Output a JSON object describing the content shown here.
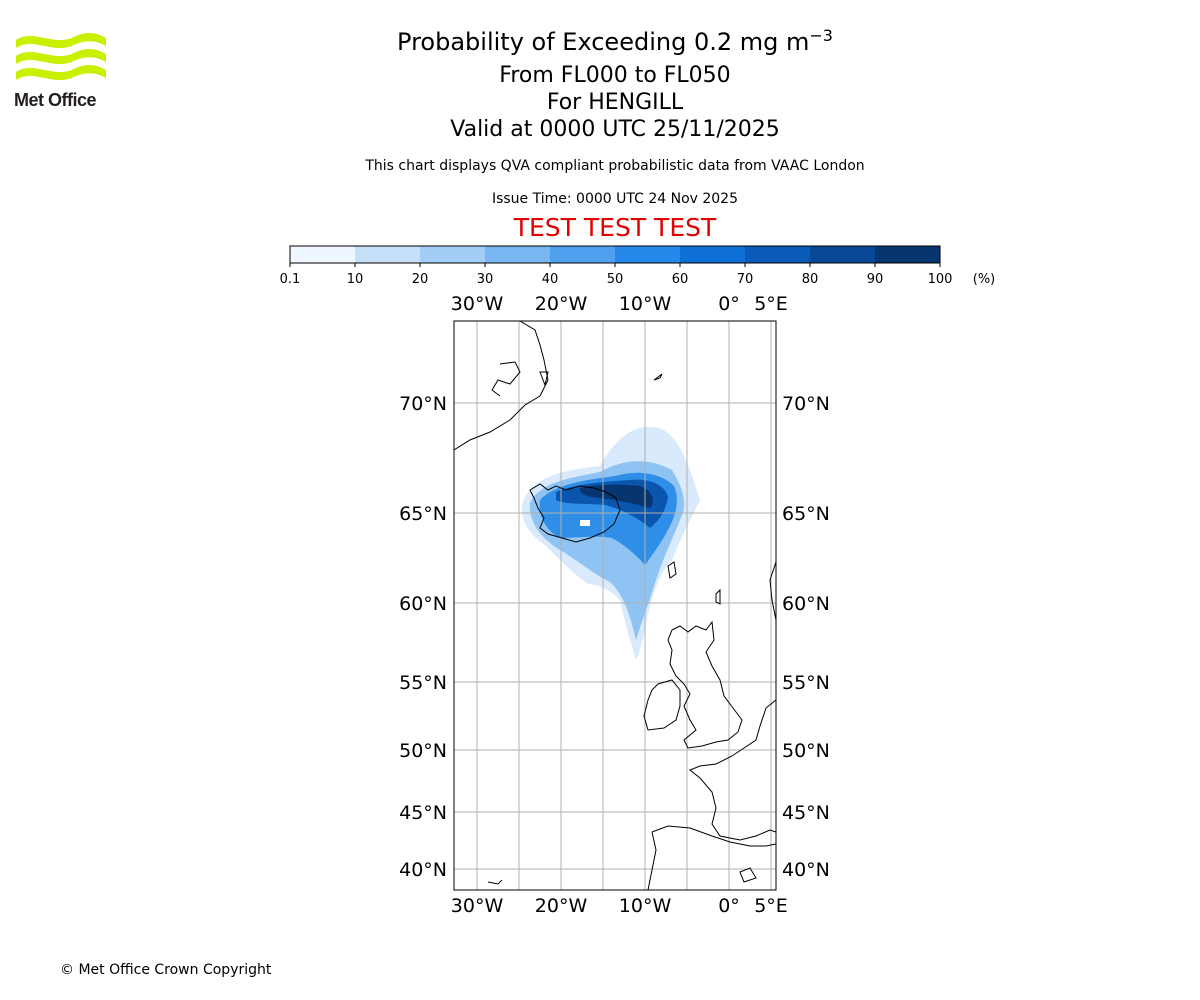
{
  "header": {
    "title_main": "Probability of Exceeding 0.2 mg m",
    "title_sup": "−3",
    "subtitle_levels": "From FL000 to FL050",
    "subtitle_volcano": "For HENGILL",
    "subtitle_valid": "Valid at 0000 UTC 25/11/2025",
    "description": "This chart displays QVA compliant probabilistic data from VAAC London",
    "issue_time": "Issue Time: 0000 UTC 24 Nov 2025",
    "test_banner": "TEST TEST TEST"
  },
  "logo": {
    "text": "Met Office",
    "icon": "met-office-wave-icon",
    "color": "#c8f000"
  },
  "colorbar": {
    "ticks": [
      "0.1",
      "10",
      "20",
      "30",
      "40",
      "50",
      "60",
      "70",
      "80",
      "90",
      "100"
    ],
    "unit": "(%)",
    "colors": [
      "#eef6ff",
      "#c6e0fa",
      "#a4cdf6",
      "#7ab7f2",
      "#4fa0ef",
      "#2489ea",
      "#0e70d6",
      "#0a5bb7",
      "#084896",
      "#063570",
      "#04234a"
    ]
  },
  "map": {
    "lon_labels": [
      "30°W",
      "20°W",
      "10°W",
      "0°",
      "5°E"
    ],
    "lat_labels": [
      "70°N",
      "65°N",
      "60°N",
      "55°N",
      "50°N",
      "45°N",
      "40°N"
    ],
    "extent": {
      "lon_min": -32.7,
      "lon_max": 5.5,
      "lat_min": 38.9,
      "lat_max": 73.6
    }
  },
  "footer": {
    "copyright": "© Met Office Crown Copyright"
  }
}
